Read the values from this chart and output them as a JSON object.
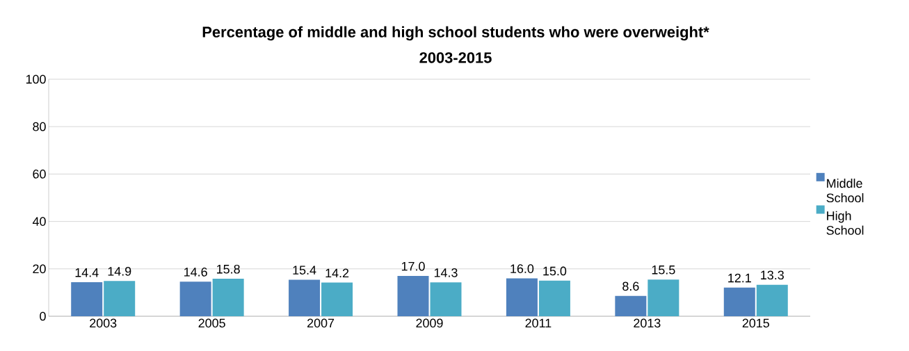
{
  "chart_data": {
    "type": "bar",
    "title": "Percentage of middle and high school students who were overweight*",
    "subtitle": "2003-2015",
    "categories": [
      "2003",
      "2005",
      "2007",
      "2009",
      "2011",
      "2013",
      "2015"
    ],
    "series": [
      {
        "name": "Middle School",
        "color": "#4f81bd",
        "values": [
          14.4,
          14.6,
          15.4,
          17.0,
          16.0,
          8.6,
          12.1
        ],
        "value_labels": [
          "14.4",
          "14.6",
          "15.4",
          "17.0",
          "16.0",
          "8.6",
          "12.1"
        ]
      },
      {
        "name": "High School",
        "color": "#4bacc6",
        "values": [
          14.9,
          15.8,
          14.2,
          14.3,
          15.0,
          15.5,
          13.3
        ],
        "value_labels": [
          "14.9",
          "15.8",
          "14.2",
          "14.3",
          "15.0",
          "15.5",
          "13.3"
        ]
      }
    ],
    "ylim": [
      0,
      100
    ],
    "yticks": [
      0,
      20,
      40,
      60,
      80,
      100
    ],
    "grid": "y",
    "legend": "right"
  }
}
